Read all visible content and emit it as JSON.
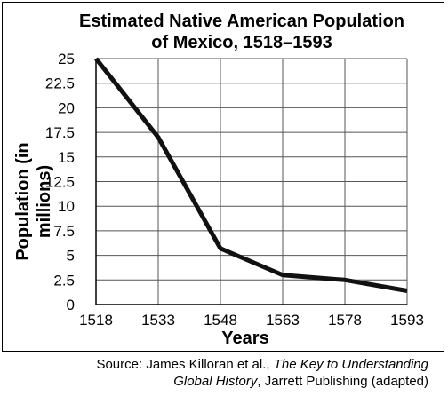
{
  "title_line1": "Estimated Native American Population",
  "title_line2": "of Mexico, 1518–1593",
  "ylabel": "Population (in millions)",
  "xlabel": "Years",
  "source": {
    "prefix": "Source: James Killoran et al., ",
    "book_part1": "The Key to Understanding",
    "book_part2": "Global History",
    "suffix": ", Jarrett Publishing (adapted)"
  },
  "chart_data": {
    "type": "line",
    "title": "Estimated Native American Population of Mexico, 1518–1593",
    "xlabel": "Years",
    "ylabel": "Population (in millions)",
    "x": [
      1518,
      1533,
      1548,
      1563,
      1578,
      1593
    ],
    "series": [
      {
        "values": [
          25,
          17,
          5.7,
          3.0,
          2.5,
          1.4
        ]
      }
    ],
    "xticks": [
      "1518",
      "1533",
      "1548",
      "1563",
      "1578",
      "1593"
    ],
    "yticks": [
      "0",
      "2.5",
      "5",
      "7.5",
      "10",
      "12.5",
      "15",
      "17.5",
      "20",
      "22.5",
      "25"
    ],
    "ylim": [
      0,
      25
    ],
    "xlim": [
      1518,
      1593
    ],
    "grid": "horizontal",
    "line_color": "#111111"
  }
}
